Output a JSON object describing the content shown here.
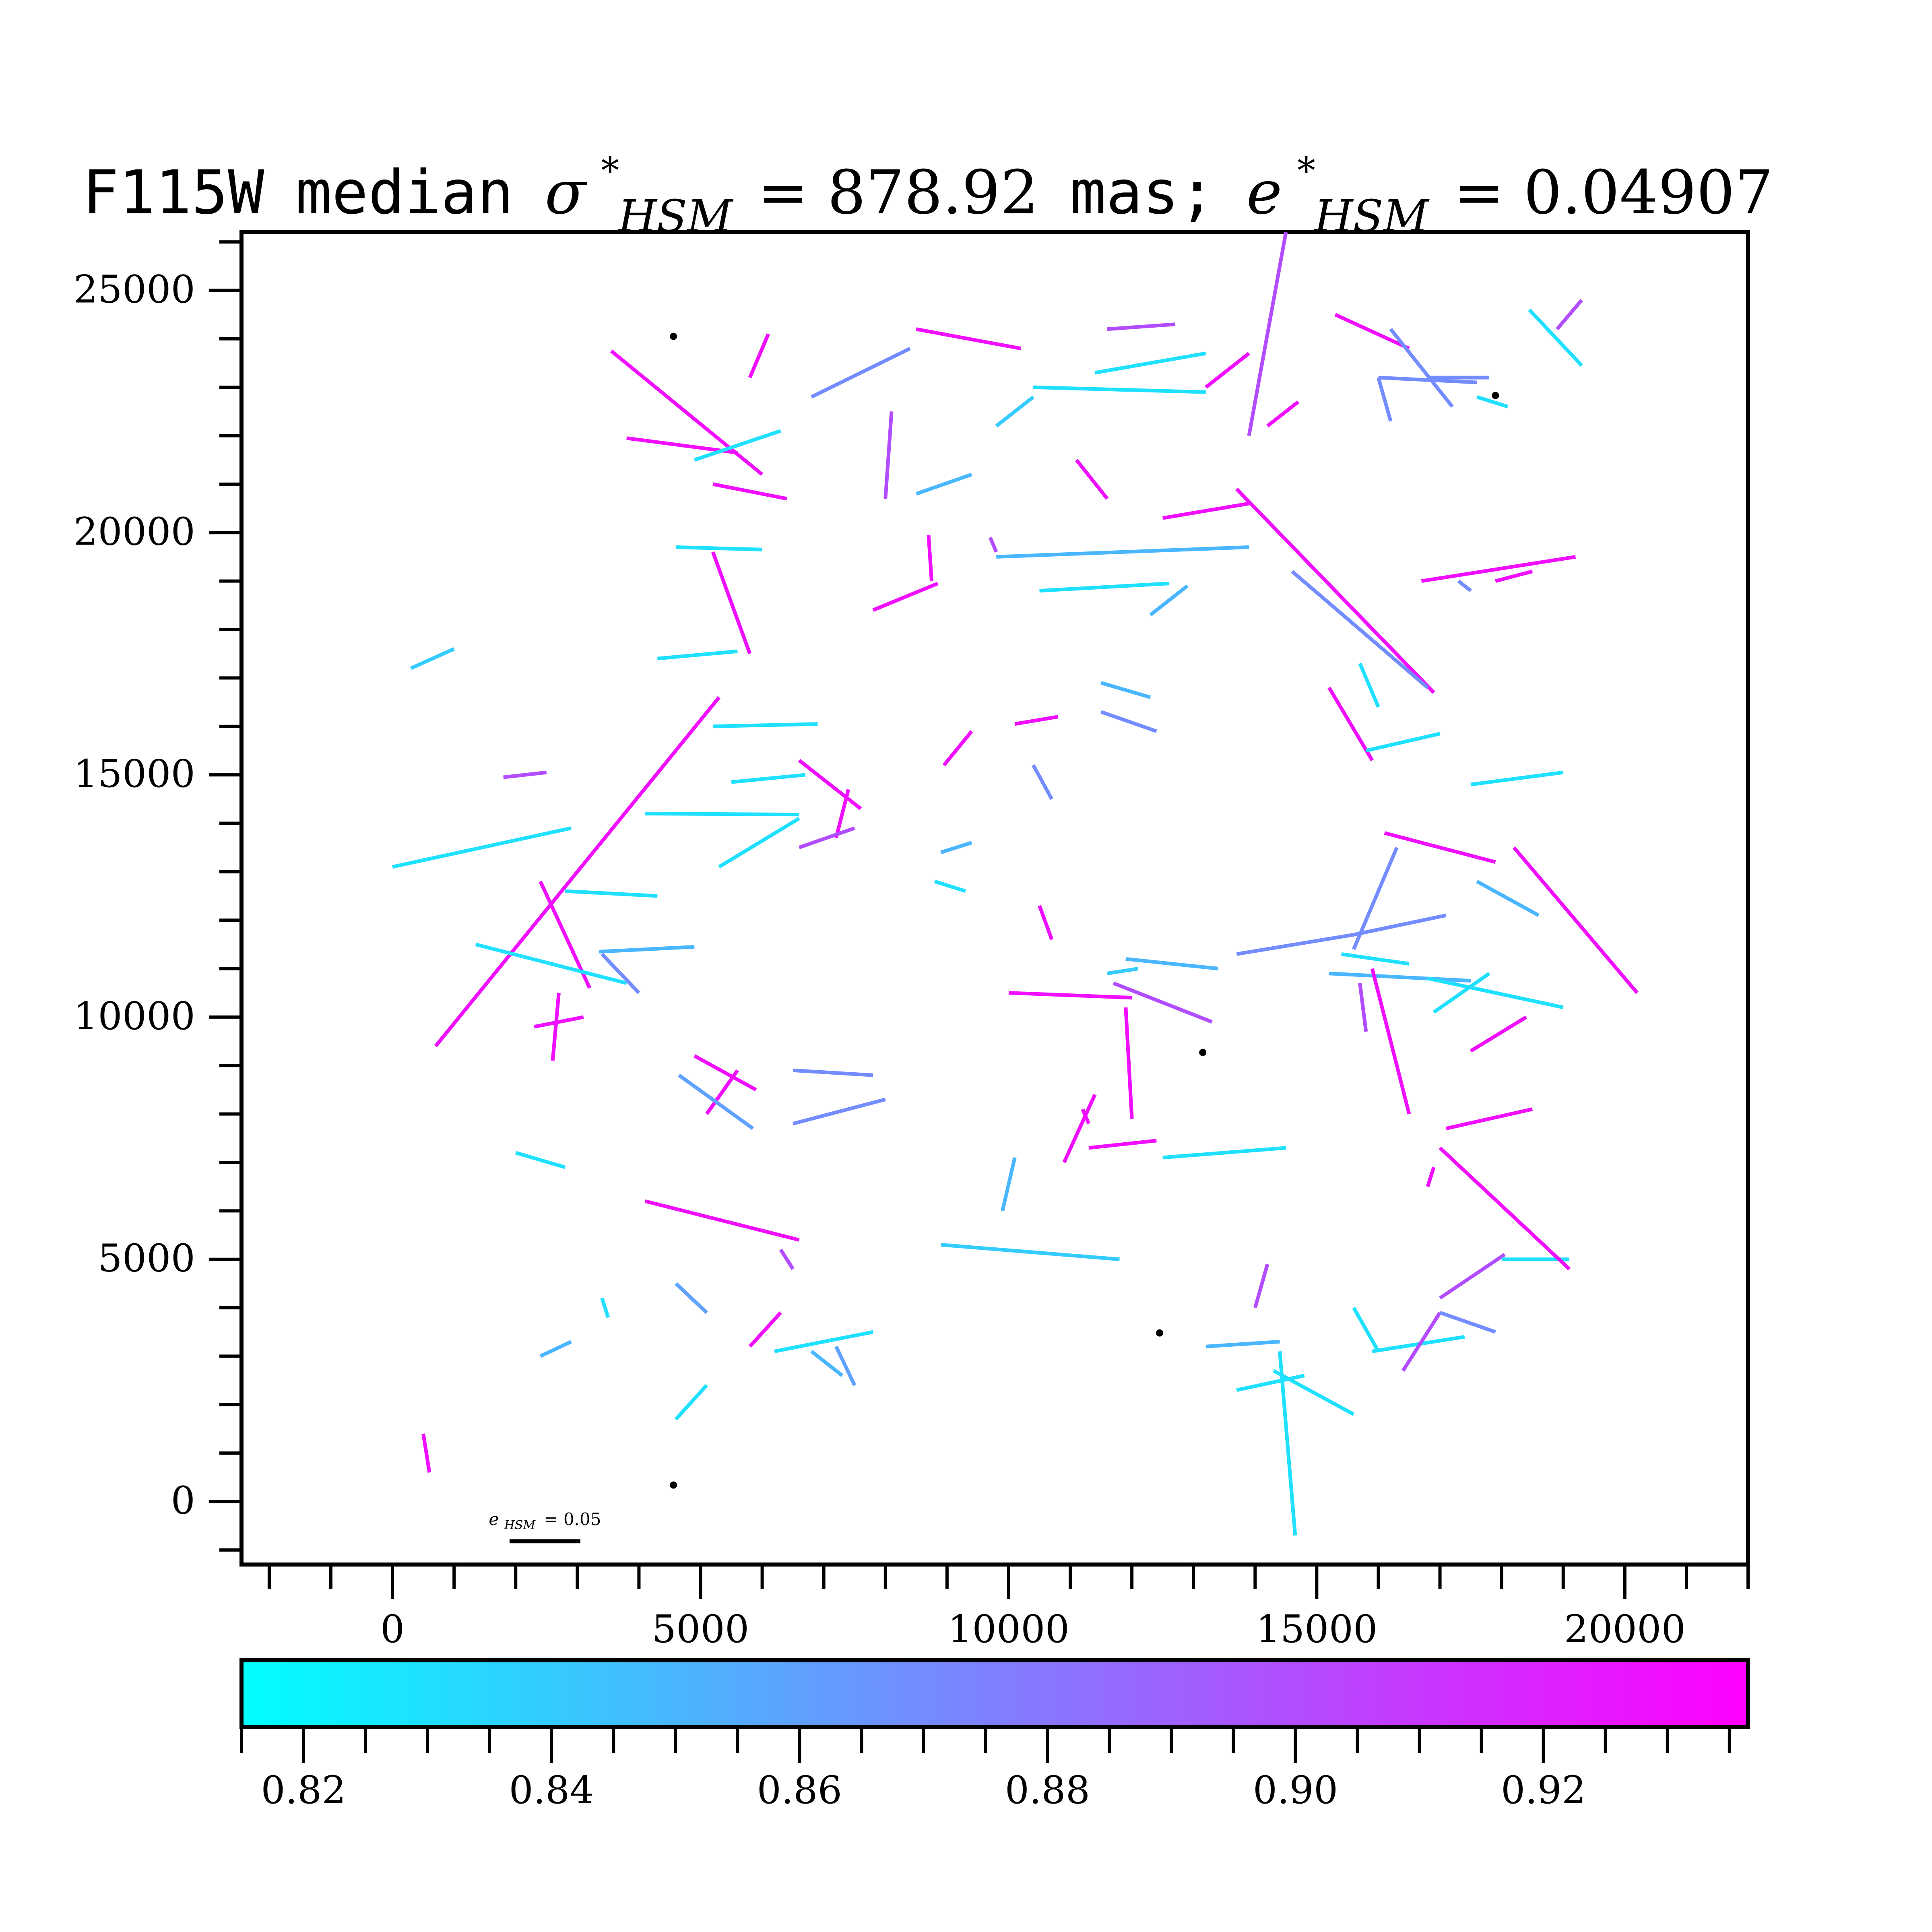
{
  "chart_data": {
    "type": "quiver",
    "title": {
      "band": "F115W",
      "word_median": "median",
      "sigma_symbol": "σ",
      "sigma_super": "*",
      "sigma_sub": "HSM",
      "sigma_value": "= 878.92",
      "sigma_unit": "mas;",
      "e_symbol": "e",
      "e_super": "*",
      "e_sub": "HSM",
      "e_value": "= 0.04907"
    },
    "xlim": [
      -2450,
      22000
    ],
    "ylim": [
      -1300,
      26200
    ],
    "xticks": [
      0,
      5000,
      10000,
      15000,
      20000
    ],
    "xtick_labels": [
      "0",
      "5000",
      "10000",
      "15000",
      "20000"
    ],
    "x_minor_step": 1000,
    "yticks": [
      0,
      5000,
      10000,
      15000,
      20000,
      25000
    ],
    "ytick_labels": [
      "0",
      "5000",
      "10000",
      "15000",
      "20000",
      "25000"
    ],
    "y_minor_step": 1000,
    "grid": false,
    "key": {
      "label_symbol": "e",
      "label_sub": "HSM",
      "label_value": "= 0.05",
      "x0": 1900,
      "x1": 3050,
      "y": -820
    },
    "colorbar": {
      "min": 0.815,
      "max": 0.9365,
      "ticks": [
        0.82,
        0.84,
        0.86,
        0.88,
        0.9,
        0.92
      ],
      "tick_labels": [
        "0.82",
        "0.84",
        "0.86",
        "0.88",
        "0.90",
        "0.92"
      ],
      "minor_step": 0.005,
      "colors": [
        "#00ffff",
        "#ff00ff"
      ],
      "placement": "bottom"
    },
    "points": [
      [
        4560,
        24050
      ],
      [
        17900,
        22830
      ],
      [
        13150,
        9270
      ],
      [
        12450,
        3480
      ],
      [
        4560,
        340
      ]
    ],
    "segments": [
      [
        3550,
        23750,
        6000,
        21200,
        0.93
      ],
      [
        3800,
        21950,
        5600,
        21650,
        0.93
      ],
      [
        4900,
        21500,
        6300,
        22100,
        0.83
      ],
      [
        5200,
        21000,
        6400,
        20700,
        0.93
      ],
      [
        5800,
        23200,
        6100,
        24100,
        0.93
      ],
      [
        6800,
        22800,
        8400,
        23800,
        0.87
      ],
      [
        8100,
        22500,
        8000,
        20700,
        0.9
      ],
      [
        8500,
        24200,
        10200,
        23800,
        0.93
      ],
      [
        8500,
        20800,
        9400,
        21200,
        0.85
      ],
      [
        9800,
        22200,
        10400,
        22800,
        0.84
      ],
      [
        10400,
        23000,
        13200,
        22900,
        0.83
      ],
      [
        11400,
        23300,
        13200,
        23700,
        0.83
      ],
      [
        11600,
        24200,
        12700,
        24300,
        0.9
      ],
      [
        13200,
        23000,
        13900,
        23700,
        0.93
      ],
      [
        13900,
        22000,
        14500,
        26200,
        0.9
      ],
      [
        14200,
        22200,
        14700,
        22700,
        0.93
      ],
      [
        15300,
        24500,
        16500,
        23800,
        0.93
      ],
      [
        16200,
        24200,
        17200,
        22600,
        0.87
      ],
      [
        16200,
        22300,
        16000,
        23200,
        0.87
      ],
      [
        16000,
        23200,
        17600,
        23100,
        0.87
      ],
      [
        16800,
        23200,
        17800,
        23200,
        0.87
      ],
      [
        17600,
        22800,
        18100,
        22600,
        0.83
      ],
      [
        18450,
        24600,
        19300,
        23450,
        0.83
      ],
      [
        19300,
        24800,
        18900,
        24200,
        0.9
      ],
      [
        4600,
        19700,
        6000,
        19650,
        0.83
      ],
      [
        5200,
        19600,
        5800,
        17500,
        0.93
      ],
      [
        4300,
        17400,
        5600,
        17550,
        0.83
      ],
      [
        7800,
        18400,
        8850,
        18950,
        0.93
      ],
      [
        8750,
        19000,
        8700,
        19950,
        0.93
      ],
      [
        9700,
        19900,
        9800,
        19600,
        0.9
      ],
      [
        9800,
        19500,
        13900,
        19700,
        0.85
      ],
      [
        10500,
        18800,
        12600,
        18950,
        0.83
      ],
      [
        12300,
        18300,
        12900,
        18900,
        0.85
      ],
      [
        11100,
        21500,
        11600,
        20700,
        0.93
      ],
      [
        12500,
        20300,
        13900,
        20600,
        0.93
      ],
      [
        13700,
        20900,
        16900,
        16700,
        0.93
      ],
      [
        14600,
        19200,
        16800,
        16800,
        0.87
      ],
      [
        15700,
        17300,
        16000,
        16400,
        0.83
      ],
      [
        16700,
        19000,
        19200,
        19500,
        0.93
      ],
      [
        17300,
        19000,
        17500,
        18800,
        0.87
      ],
      [
        17900,
        19000,
        18500,
        19200,
        0.93
      ],
      [
        300,
        17200,
        1000,
        17600,
        0.84
      ],
      [
        700,
        9400,
        5300,
        16600,
        0.93
      ],
      [
        5200,
        16000,
        6900,
        16050,
        0.83
      ],
      [
        5500,
        14850,
        6700,
        15000,
        0.83
      ],
      [
        4100,
        14200,
        6600,
        14180,
        0.83
      ],
      [
        6600,
        15300,
        7600,
        14300,
        0.93
      ],
      [
        7400,
        14700,
        7200,
        13700,
        0.93
      ],
      [
        5300,
        13100,
        6600,
        14100,
        0.83
      ],
      [
        6600,
        13500,
        7500,
        13900,
        0.9
      ],
      [
        0,
        13100,
        2900,
        13900,
        0.83
      ],
      [
        1800,
        14950,
        2500,
        15050,
        0.9
      ],
      [
        2400,
        12800,
        3200,
        10600,
        0.93
      ],
      [
        2800,
        12600,
        4300,
        12500,
        0.83
      ],
      [
        1350,
        11500,
        3800,
        10700,
        0.83
      ],
      [
        3350,
        11350,
        4900,
        11450,
        0.85
      ],
      [
        3400,
        11300,
        4000,
        10500,
        0.87
      ],
      [
        2300,
        9800,
        3100,
        10000,
        0.93
      ],
      [
        2600,
        9100,
        2700,
        10500,
        0.93
      ],
      [
        8950,
        15200,
        9400,
        15900,
        0.93
      ],
      [
        10100,
        16050,
        10800,
        16200,
        0.93
      ],
      [
        10400,
        15200,
        10700,
        14500,
        0.87
      ],
      [
        11500,
        16300,
        12400,
        15900,
        0.87
      ],
      [
        11500,
        16900,
        12300,
        16600,
        0.85
      ],
      [
        8900,
        13400,
        9400,
        13600,
        0.85
      ],
      [
        8800,
        12800,
        9300,
        12600,
        0.83
      ],
      [
        10500,
        12300,
        10700,
        11600,
        0.93
      ],
      [
        15200,
        16800,
        15900,
        15300,
        0.93
      ],
      [
        15800,
        15500,
        17000,
        15850,
        0.83
      ],
      [
        17500,
        14800,
        19000,
        15050,
        0.83
      ],
      [
        16100,
        13800,
        17900,
        13200,
        0.93
      ],
      [
        18200,
        13500,
        20200,
        10500,
        0.93
      ],
      [
        17600,
        12800,
        18600,
        12100,
        0.85
      ],
      [
        15600,
        11700,
        17100,
        12100,
        0.87
      ],
      [
        15600,
        11400,
        16300,
        13500,
        0.87
      ],
      [
        13700,
        11300,
        15600,
        11700,
        0.87
      ],
      [
        15400,
        11300,
        16500,
        11100,
        0.83
      ],
      [
        15200,
        10900,
        17500,
        10750,
        0.85
      ],
      [
        16800,
        10800,
        19000,
        10200,
        0.83
      ],
      [
        16900,
        10100,
        17800,
        10900,
        0.83
      ],
      [
        17500,
        9300,
        18400,
        10000,
        0.93
      ],
      [
        15700,
        10700,
        15800,
        9700,
        0.9
      ],
      [
        15900,
        11000,
        16500,
        8000,
        0.93
      ],
      [
        11600,
        10900,
        12100,
        11000,
        0.84
      ],
      [
        11900,
        11200,
        13400,
        11000,
        0.85
      ],
      [
        11700,
        10700,
        13300,
        9900,
        0.9
      ],
      [
        10000,
        10500,
        12000,
        10400,
        0.93
      ],
      [
        11900,
        10200,
        12000,
        7900,
        0.93
      ],
      [
        10900,
        7000,
        11400,
        8400,
        0.93
      ],
      [
        11300,
        7300,
        12400,
        7450,
        0.93
      ],
      [
        11200,
        8100,
        11300,
        7800,
        0.93
      ],
      [
        12500,
        7100,
        14500,
        7300,
        0.83
      ],
      [
        9900,
        6000,
        10100,
        7100,
        0.85
      ],
      [
        4900,
        9200,
        5900,
        8500,
        0.93
      ],
      [
        5100,
        8000,
        5600,
        8900,
        0.93
      ],
      [
        4650,
        8800,
        5850,
        7700,
        0.86
      ],
      [
        6500,
        8900,
        7800,
        8800,
        0.87
      ],
      [
        6500,
        7800,
        8000,
        8300,
        0.87
      ],
      [
        2000,
        7200,
        2800,
        6900,
        0.83
      ],
      [
        4100,
        6200,
        6600,
        5400,
        0.93
      ],
      [
        6300,
        5200,
        6500,
        4800,
        0.9
      ],
      [
        3400,
        4200,
        3500,
        3800,
        0.83
      ],
      [
        2400,
        3000,
        2900,
        3300,
        0.85
      ],
      [
        4600,
        4500,
        5100,
        3900,
        0.86
      ],
      [
        5800,
        3200,
        6300,
        3900,
        0.93
      ],
      [
        6200,
        3100,
        7800,
        3500,
        0.83
      ],
      [
        6800,
        3100,
        7300,
        2600,
        0.85
      ],
      [
        7200,
        3200,
        7500,
        2400,
        0.86
      ],
      [
        4600,
        1700,
        5100,
        2400,
        0.83
      ],
      [
        500,
        1400,
        600,
        600,
        0.93
      ],
      [
        8900,
        5300,
        11800,
        5000,
        0.84
      ],
      [
        14000,
        4000,
        14200,
        4900,
        0.9
      ],
      [
        13200,
        3200,
        14400,
        3300,
        0.85
      ],
      [
        13700,
        2300,
        14800,
        2600,
        0.83
      ],
      [
        14400,
        3100,
        14650,
        -700,
        0.83
      ],
      [
        14300,
        2700,
        15600,
        1800,
        0.83
      ],
      [
        15600,
        4000,
        16000,
        3100,
        0.83
      ],
      [
        15900,
        3100,
        17400,
        3400,
        0.83
      ],
      [
        16400,
        2700,
        17000,
        3900,
        0.9
      ],
      [
        17000,
        3900,
        17900,
        3500,
        0.87
      ],
      [
        17000,
        4200,
        18050,
        5100,
        0.9
      ],
      [
        18000,
        5000,
        19100,
        5000,
        0.83
      ],
      [
        17000,
        7300,
        19100,
        4800,
        0.93
      ],
      [
        17100,
        7700,
        18500,
        8100,
        0.93
      ],
      [
        16800,
        6500,
        16900,
        6900,
        0.93
      ]
    ]
  }
}
